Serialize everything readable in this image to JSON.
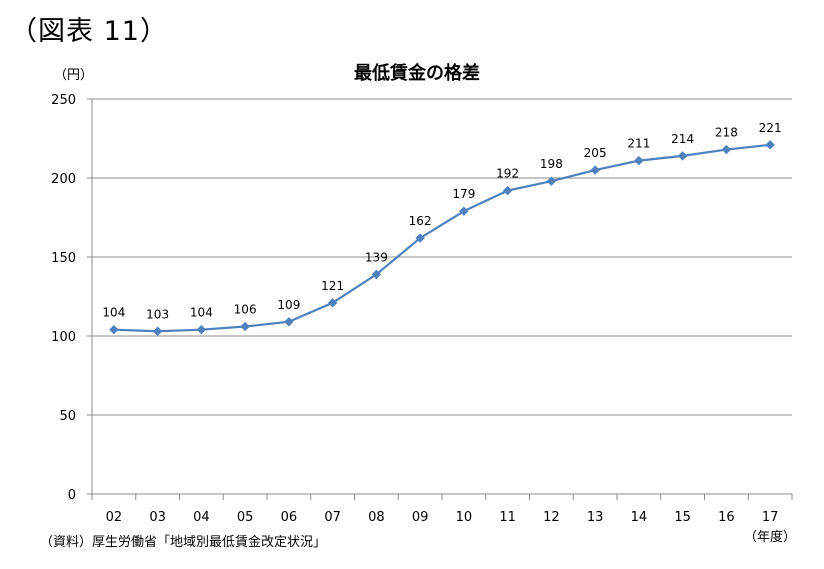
{
  "figure_label": "（図表 11）",
  "source_note": "（資料）厚生労働省「地域別最低賃金改定状況」",
  "chart_data": {
    "type": "line",
    "title": "最低賃金の格差",
    "ylabel": "（円）",
    "xlabel": "（年度）",
    "categories": [
      "02",
      "03",
      "04",
      "05",
      "06",
      "07",
      "08",
      "09",
      "10",
      "11",
      "12",
      "13",
      "14",
      "15",
      "16",
      "17"
    ],
    "values": [
      104,
      103,
      104,
      106,
      109,
      121,
      139,
      162,
      179,
      192,
      198,
      205,
      211,
      214,
      218,
      221
    ],
    "ylim": [
      0,
      250
    ],
    "yticks": [
      0,
      50,
      100,
      150,
      200,
      250
    ],
    "grid": true,
    "legend": "none",
    "line_color": "#4f81bd",
    "grid_color": "#8c8c8c",
    "axis_color": "#8c8c8c"
  }
}
